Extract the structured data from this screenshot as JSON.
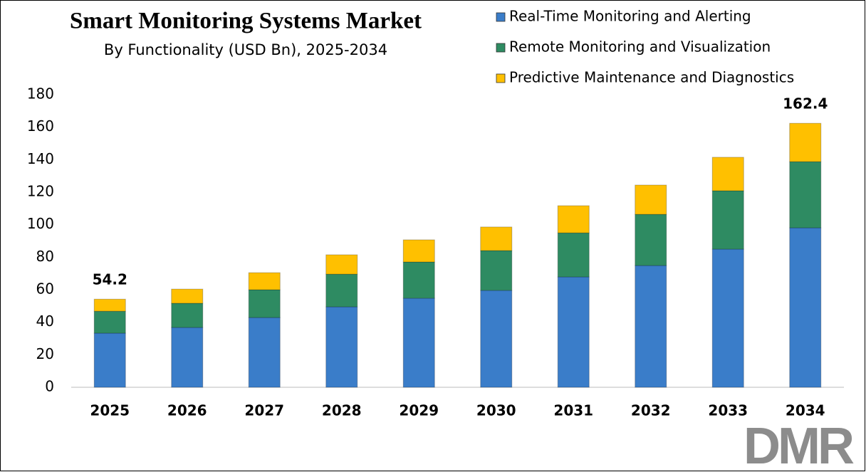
{
  "chart_data": {
    "type": "stacked_bar",
    "title": "Smart Monitoring Systems Market",
    "subtitle": "By Functionality (USD Bn), 2025-2034",
    "categories": [
      "2025",
      "2026",
      "2027",
      "2028",
      "2029",
      "2030",
      "2031",
      "2032",
      "2033",
      "2034"
    ],
    "series": [
      {
        "name": "Real-Time Monitoring and Alerting",
        "color": "#3a7dc9",
        "values": [
          33.3,
          36.8,
          42.9,
          49.5,
          54.8,
          59.6,
          67.9,
          74.9,
          85.0,
          98.1
        ]
      },
      {
        "name": "Remote Monitoring and Visualization",
        "color": "#2e8b62",
        "values": [
          13.5,
          14.9,
          17.1,
          20.1,
          22.3,
          24.5,
          27.1,
          31.5,
          35.9,
          40.7
        ]
      },
      {
        "name": "Predictive Maintenance and Diagnostics",
        "color": "#ffc000",
        "values": [
          7.4,
          8.7,
          10.5,
          11.9,
          13.6,
          14.5,
          16.7,
          18.0,
          20.6,
          23.6
        ]
      }
    ],
    "annotations": [
      {
        "x": "2025",
        "text": "54.2"
      },
      {
        "x": "2034",
        "text": "162.4"
      }
    ],
    "ylim": [
      0,
      180
    ],
    "yticks": [
      0,
      20,
      40,
      60,
      80,
      100,
      120,
      140,
      160,
      180
    ],
    "grid": false,
    "legend": "top-right"
  },
  "logo": "DMR"
}
